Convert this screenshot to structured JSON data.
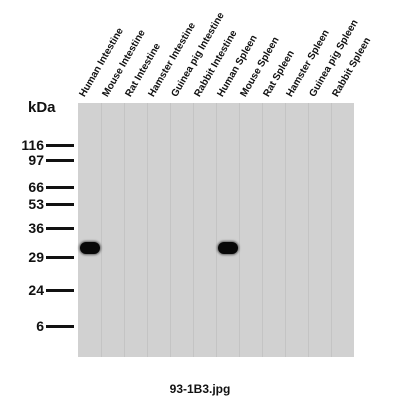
{
  "lanes": [
    "Human Intestine",
    "Mouse Intestine",
    "Rat Intestine",
    "Hamster Intestine",
    "Guinea pig Intestine",
    "Rabbit Intestine",
    "Human Spleen",
    "Mouse Spleen",
    "Rat Spleen",
    "Hamster Spleen",
    "Guinea pig Spleen",
    "Rabbit Spleen"
  ],
  "unit_label": "kDa",
  "markers": [
    "116",
    "97",
    "66",
    "53",
    "36",
    "29",
    "24",
    "6"
  ],
  "bands": [
    {
      "lane_index": 0,
      "marker_between": [
        "36",
        "29"
      ]
    },
    {
      "lane_index": 6,
      "marker_between": [
        "36",
        "29"
      ]
    }
  ],
  "caption": "93-1B3.jpg",
  "colors": {
    "membrane": "#d1d1d1",
    "band": "#080808",
    "text": "#111111"
  }
}
